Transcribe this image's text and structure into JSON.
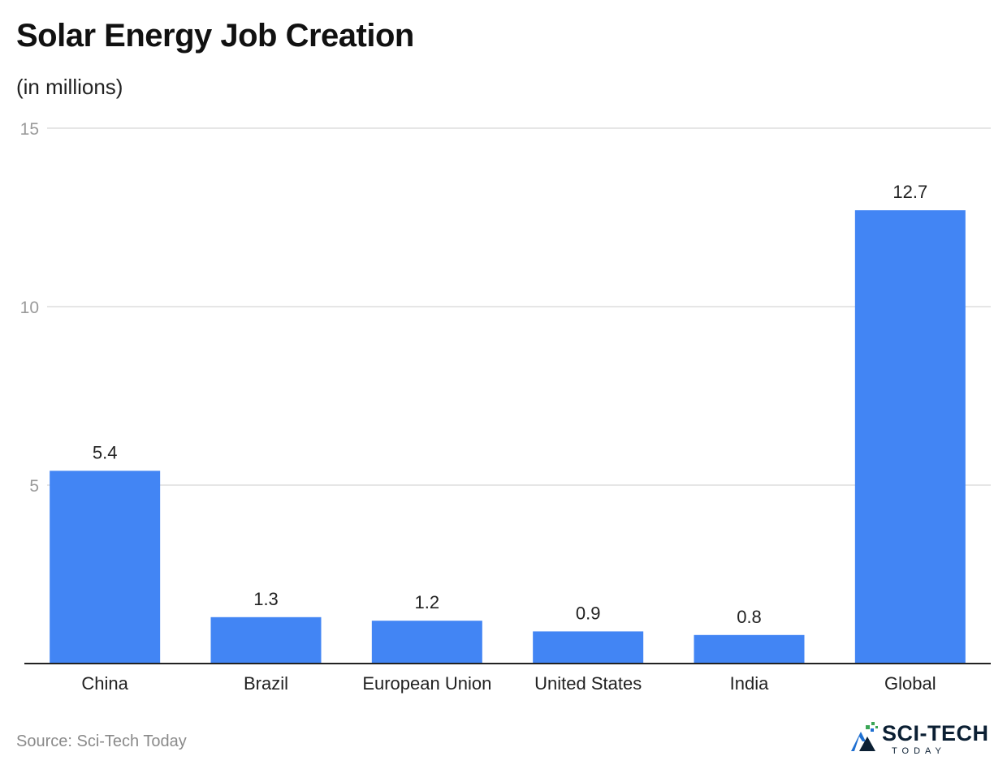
{
  "title": "Solar Energy Job Creation",
  "subtitle": "(in millions)",
  "source": "Source: Sci-Tech Today",
  "logo": {
    "line1": "SCI-TECH",
    "line2": "TODAY"
  },
  "colors": {
    "bar": "#4285f4",
    "grid": "#dddddd",
    "axis": "#222222"
  },
  "chart_data": {
    "type": "bar",
    "title": "Solar Energy Job Creation",
    "subtitle": "(in millions)",
    "categories": [
      "China",
      "Brazil",
      "European Union",
      "United States",
      "India",
      "Global"
    ],
    "values": [
      5.4,
      1.3,
      1.2,
      0.9,
      0.8,
      12.7
    ],
    "value_labels": [
      "5.4",
      "1.3",
      "1.2",
      "0.9",
      "0.8",
      "12.7"
    ],
    "yticks": [
      5,
      10,
      15
    ],
    "ylim": [
      0,
      15
    ],
    "xlabel": "",
    "ylabel": "",
    "grid": true,
    "legend": "none"
  }
}
